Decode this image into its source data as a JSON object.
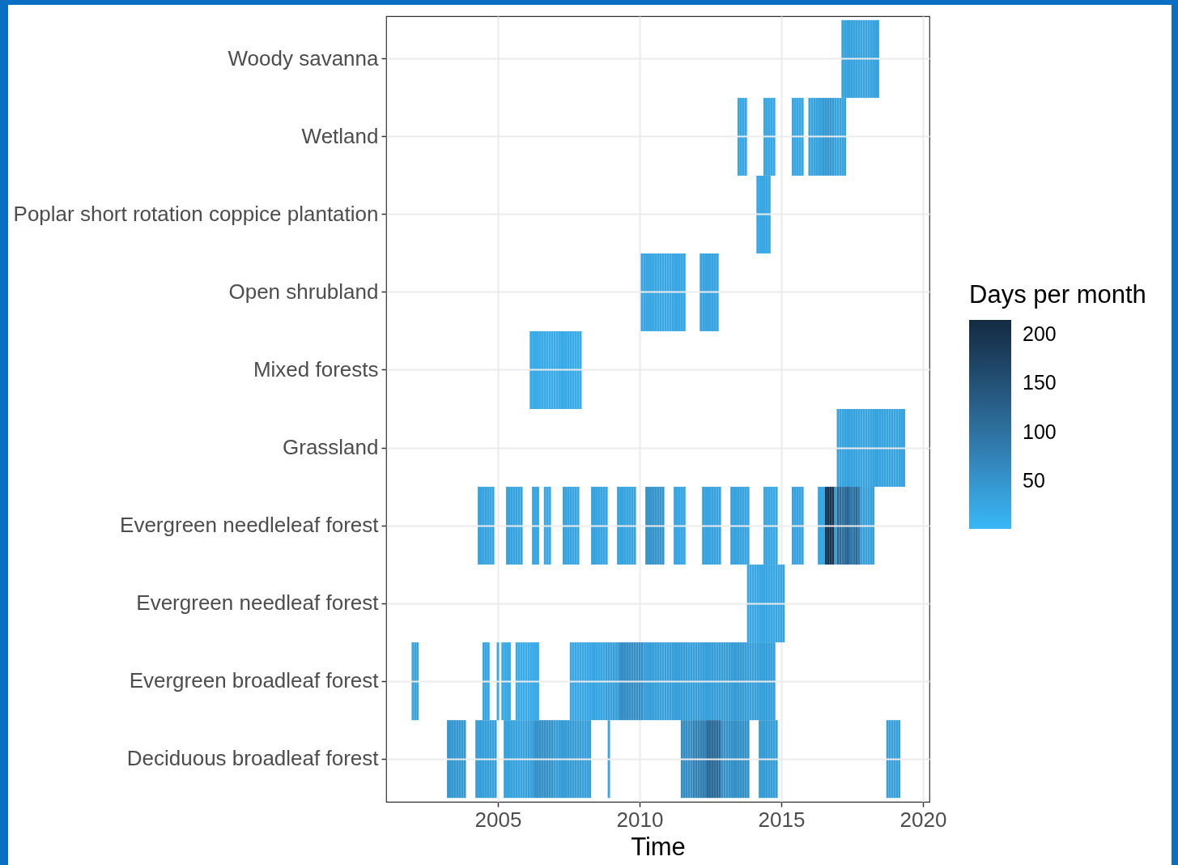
{
  "chart_data": {
    "type": "heatmap",
    "xlabel": "Time",
    "clabel": "Days per month",
    "x": [
      "2002-01",
      "2002-02",
      "2002-03",
      "2002-04",
      "2003-03",
      "2003-04",
      "2003-05",
      "2003-06",
      "2003-07",
      "2003-08",
      "2003-09",
      "2003-10",
      "2003-11",
      "2003-12",
      "2004-03",
      "2004-04",
      "2004-05",
      "2004-06",
      "2004-07",
      "2004-08",
      "2004-09",
      "2004-10",
      "2004-11",
      "2004-12",
      "2005-01",
      "2005-02",
      "2005-03",
      "2005-04",
      "2005-05",
      "2005-06",
      "2005-07",
      "2005-08",
      "2005-09",
      "2005-10",
      "2005-11",
      "2005-12",
      "2006-01",
      "2006-02",
      "2006-03",
      "2006-04",
      "2006-05",
      "2006-06",
      "2006-07",
      "2006-08",
      "2006-09",
      "2006-10",
      "2006-11",
      "2006-12",
      "2007-01",
      "2007-02",
      "2007-03",
      "2007-04",
      "2007-05",
      "2007-06",
      "2007-07",
      "2007-08",
      "2007-09",
      "2007-10",
      "2007-11",
      "2007-12",
      "2008-01",
      "2008-02",
      "2008-03",
      "2008-04",
      "2008-05",
      "2008-06",
      "2008-07",
      "2008-08",
      "2008-09",
      "2008-10",
      "2008-11",
      "2008-12",
      "2009-01",
      "2009-02",
      "2009-03",
      "2009-04",
      "2009-05",
      "2009-06",
      "2009-07",
      "2009-08",
      "2009-09",
      "2009-10",
      "2009-11",
      "2009-12",
      "2010-01",
      "2010-02",
      "2010-03",
      "2010-04",
      "2010-05",
      "2010-06",
      "2010-07",
      "2010-08",
      "2010-09",
      "2010-10",
      "2010-11",
      "2010-12",
      "2011-01",
      "2011-02",
      "2011-03",
      "2011-04",
      "2011-05",
      "2011-06",
      "2011-07",
      "2011-08",
      "2011-09",
      "2011-10",
      "2011-11",
      "2011-12",
      "2012-01",
      "2012-02",
      "2012-03",
      "2012-04",
      "2012-05",
      "2012-06",
      "2012-07",
      "2012-08",
      "2012-09",
      "2012-10",
      "2012-11",
      "2012-12",
      "2013-01",
      "2013-02",
      "2013-03",
      "2013-04",
      "2013-05",
      "2013-06",
      "2013-07",
      "2013-08",
      "2013-09",
      "2013-10",
      "2013-11",
      "2013-12",
      "2014-01",
      "2014-02",
      "2014-03",
      "2014-04",
      "2014-05",
      "2014-06",
      "2014-07",
      "2014-08",
      "2014-09",
      "2014-10",
      "2014-11",
      "2014-12",
      "2015-01",
      "2015-02",
      "2015-03",
      "2015-05",
      "2015-06",
      "2015-07",
      "2015-08",
      "2015-09",
      "2015-10",
      "2015-11",
      "2015-12",
      "2016-01",
      "2016-02",
      "2016-03",
      "2016-04",
      "2016-05",
      "2016-06",
      "2016-07",
      "2016-08",
      "2016-09",
      "2016-10",
      "2016-11",
      "2016-12",
      "2017-01",
      "2017-02",
      "2017-03",
      "2017-04",
      "2017-05",
      "2017-06",
      "2017-07",
      "2017-08",
      "2017-09",
      "2017-10",
      "2017-11",
      "2017-12",
      "2018-01",
      "2018-02",
      "2018-03",
      "2018-04",
      "2018-05",
      "2018-06",
      "2018-07",
      "2018-08",
      "2018-09",
      "2018-10",
      "2018-11",
      "2018-12",
      "2019-01",
      "2019-02",
      "2019-03",
      "2019-04",
      "2019-05",
      "2019-06"
    ],
    "y_categories": [
      "Woody savanna",
      "Wetland",
      "Poplar short rotation coppice plantation",
      "Open shrubland",
      "Mixed forests",
      "Grassland",
      "Evergreen needleleaf forest",
      "Evergreen needleaf forest",
      "Evergreen broadleaf forest",
      "Deciduous broadleaf forest"
    ],
    "cells": [
      [
        null,
        null,
        null,
        null,
        null,
        null,
        null,
        null,
        null,
        null,
        null,
        null,
        null,
        null,
        null,
        null,
        null,
        null,
        null,
        null,
        null,
        null,
        null,
        null,
        null,
        null,
        null,
        null,
        null,
        null,
        null,
        null,
        null,
        null,
        null,
        null,
        null,
        null,
        null,
        null,
        null,
        null,
        null,
        null,
        null,
        null,
        null,
        null,
        null,
        null,
        null,
        null,
        null,
        null,
        null,
        null,
        null,
        null,
        null,
        null,
        null,
        null,
        null,
        null,
        null,
        null,
        null,
        null,
        null,
        null,
        null,
        null,
        null,
        null,
        null,
        null,
        null,
        null,
        null,
        null,
        null,
        null,
        null,
        null,
        null,
        null,
        null,
        null,
        null,
        null,
        null,
        null,
        null,
        null,
        null,
        null,
        null,
        null,
        null,
        null,
        null,
        null,
        null,
        null,
        null,
        null,
        null,
        null,
        null,
        null,
        null,
        null,
        null,
        null,
        null,
        null,
        null,
        null,
        null,
        null,
        null,
        null,
        null,
        null,
        null,
        null,
        null,
        null,
        null,
        null,
        null,
        null,
        null,
        null,
        null,
        null,
        null,
        null,
        null,
        null,
        null,
        null,
        null,
        null,
        null,
        null,
        null,
        null,
        null,
        null,
        null,
        null,
        null,
        null,
        null,
        null,
        null,
        null,
        null,
        null,
        null,
        null,
        null,
        null,
        null,
        null,
        null,
        null,
        null,
        30,
        30,
        30,
        30,
        30,
        30,
        30,
        30,
        30,
        30,
        30,
        30,
        30,
        30,
        30,
        30,
        null,
        null,
        null,
        null,
        null,
        null,
        null,
        null,
        null,
        null,
        null,
        null
      ],
      [
        null,
        null,
        null,
        null,
        null,
        null,
        null,
        null,
        null,
        null,
        null,
        null,
        null,
        null,
        null,
        null,
        null,
        null,
        null,
        null,
        null,
        null,
        null,
        null,
        null,
        null,
        null,
        null,
        null,
        null,
        null,
        null,
        null,
        null,
        null,
        null,
        null,
        null,
        null,
        null,
        null,
        null,
        null,
        null,
        null,
        null,
        null,
        null,
        null,
        null,
        null,
        null,
        null,
        null,
        null,
        null,
        null,
        null,
        null,
        null,
        null,
        null,
        null,
        null,
        null,
        null,
        null,
        null,
        null,
        null,
        null,
        null,
        null,
        null,
        null,
        null,
        null,
        null,
        null,
        null,
        null,
        null,
        null,
        null,
        null,
        null,
        null,
        null,
        null,
        null,
        null,
        null,
        null,
        null,
        null,
        null,
        null,
        null,
        null,
        null,
        null,
        null,
        null,
        null,
        null,
        null,
        null,
        null,
        null,
        null,
        null,
        null,
        null,
        null,
        null,
        null,
        null,
        null,
        null,
        null,
        null,
        null,
        null,
        null,
        null,
        null,
        25,
        25,
        25,
        25,
        null,
        null,
        null,
        null,
        null,
        null,
        null,
        25,
        25,
        25,
        25,
        25,
        null,
        null,
        null,
        null,
        null,
        null,
        25,
        25,
        25,
        25,
        25,
        null,
        null,
        30,
        30,
        30,
        30,
        30,
        30,
        45,
        45,
        45,
        45,
        45,
        30,
        30,
        30,
        30,
        30,
        null,
        null,
        null,
        null,
        null,
        null,
        null,
        null,
        null,
        null,
        null,
        null,
        null,
        null,
        null,
        null,
        null,
        null,
        null,
        null,
        null,
        null,
        null,
        null,
        null,
        null
      ],
      [
        null,
        null,
        null,
        null,
        null,
        null,
        null,
        null,
        null,
        null,
        null,
        null,
        null,
        null,
        null,
        null,
        null,
        null,
        null,
        null,
        null,
        null,
        null,
        null,
        null,
        null,
        null,
        null,
        null,
        null,
        null,
        null,
        null,
        null,
        null,
        null,
        null,
        null,
        null,
        null,
        null,
        null,
        null,
        null,
        null,
        null,
        null,
        null,
        null,
        null,
        null,
        null,
        null,
        null,
        null,
        null,
        null,
        null,
        null,
        null,
        null,
        null,
        null,
        null,
        null,
        null,
        null,
        null,
        null,
        null,
        null,
        null,
        null,
        null,
        null,
        null,
        null,
        null,
        null,
        null,
        null,
        null,
        null,
        null,
        null,
        null,
        null,
        null,
        null,
        null,
        null,
        null,
        null,
        null,
        null,
        null,
        null,
        null,
        null,
        null,
        null,
        null,
        null,
        null,
        null,
        null,
        null,
        null,
        null,
        null,
        null,
        null,
        null,
        null,
        null,
        null,
        null,
        null,
        null,
        null,
        null,
        null,
        null,
        null,
        null,
        null,
        null,
        null,
        null,
        null,
        null,
        null,
        null,
        null,
        25,
        25,
        25,
        25,
        25,
        25,
        null,
        null,
        null,
        null,
        null,
        null,
        null,
        null,
        null,
        null,
        null,
        null,
        null,
        null,
        null,
        null,
        null,
        null,
        null,
        null,
        null,
        null,
        null,
        null,
        null,
        null,
        null,
        null,
        null,
        null,
        null,
        null,
        null,
        null,
        null,
        null,
        null,
        null,
        null,
        null,
        null,
        null,
        null,
        null,
        null,
        null,
        null,
        null,
        null,
        null,
        null,
        null,
        null,
        null,
        null,
        null,
        null
      ],
      [
        null,
        null,
        null,
        null,
        null,
        null,
        null,
        null,
        null,
        null,
        null,
        null,
        null,
        null,
        null,
        null,
        null,
        null,
        null,
        null,
        null,
        null,
        null,
        null,
        null,
        null,
        null,
        null,
        null,
        null,
        null,
        null,
        null,
        null,
        null,
        null,
        null,
        null,
        null,
        null,
        null,
        null,
        null,
        null,
        null,
        null,
        null,
        null,
        null,
        null,
        null,
        null,
        null,
        null,
        null,
        null,
        null,
        null,
        null,
        null,
        null,
        null,
        null,
        null,
        null,
        null,
        null,
        null,
        null,
        null,
        null,
        null,
        null,
        null,
        null,
        null,
        null,
        null,
        null,
        null,
        null,
        null,
        null,
        null,
        null,
        25,
        25,
        25,
        25,
        25,
        25,
        25,
        25,
        25,
        25,
        25,
        25,
        25,
        25,
        25,
        25,
        25,
        25,
        25,
        null,
        null,
        null,
        null,
        null,
        null,
        28,
        28,
        28,
        28,
        28,
        28,
        28,
        28,
        null,
        null,
        null,
        null,
        null,
        null,
        null,
        null,
        null,
        null,
        null,
        null,
        null,
        null,
        null,
        null,
        null,
        null,
        null,
        null,
        null,
        null,
        null,
        null,
        null,
        null,
        null,
        null,
        null,
        null,
        null,
        null,
        null,
        null,
        null,
        null,
        null,
        null,
        null,
        null,
        null,
        null,
        null,
        null,
        null,
        null,
        null,
        null,
        null,
        null,
        null,
        null,
        null,
        null,
        null,
        null,
        null,
        null,
        null,
        null,
        null,
        null,
        null,
        null,
        null,
        null,
        null,
        null,
        null,
        null,
        null,
        null,
        null,
        null,
        null,
        null,
        null,
        null,
        null
      ],
      [
        null,
        null,
        null,
        null,
        null,
        null,
        null,
        null,
        null,
        null,
        null,
        null,
        null,
        null,
        null,
        null,
        null,
        null,
        null,
        null,
        null,
        null,
        null,
        null,
        null,
        null,
        null,
        null,
        null,
        null,
        null,
        null,
        null,
        null,
        null,
        null,
        null,
        null,
        20,
        20,
        20,
        20,
        20,
        20,
        20,
        20,
        20,
        20,
        20,
        20,
        20,
        20,
        20,
        20,
        20,
        20,
        20,
        20,
        20,
        20,
        null,
        null,
        null,
        null,
        null,
        null,
        null,
        null,
        null,
        null,
        null,
        null,
        null,
        null,
        null,
        null,
        null,
        null,
        null,
        null,
        null,
        null,
        null,
        null,
        null,
        null,
        null,
        null,
        null,
        null,
        null,
        null,
        null,
        null,
        null,
        null,
        null,
        null,
        null,
        null,
        null,
        null,
        null,
        null,
        null,
        null,
        null,
        null,
        null,
        null,
        null,
        null,
        null,
        null,
        null,
        null,
        null,
        null,
        null,
        null,
        null,
        null,
        null,
        null,
        null,
        null,
        null,
        null,
        null,
        null,
        null,
        null,
        null,
        null,
        null,
        null,
        null,
        null,
        null,
        null,
        null,
        null,
        null,
        null,
        null,
        null,
        null,
        null,
        null,
        null,
        null,
        null,
        null,
        null,
        null,
        null,
        null,
        null,
        null,
        null,
        null,
        null,
        null,
        null,
        null,
        null,
        null,
        null,
        null,
        null,
        null,
        null,
        null,
        null,
        null,
        null,
        null,
        null,
        null,
        null,
        null,
        null,
        null,
        null,
        null,
        null,
        null,
        null,
        null,
        null,
        null,
        null,
        null,
        null,
        null,
        null,
        null
      ],
      [
        null,
        null,
        null,
        null,
        null,
        null,
        null,
        null,
        null,
        null,
        null,
        null,
        null,
        null,
        null,
        null,
        null,
        null,
        null,
        null,
        null,
        null,
        null,
        null,
        null,
        null,
        null,
        null,
        null,
        null,
        null,
        null,
        null,
        null,
        null,
        null,
        null,
        null,
        null,
        null,
        null,
        null,
        null,
        null,
        null,
        null,
        null,
        null,
        null,
        null,
        null,
        null,
        null,
        null,
        null,
        null,
        null,
        null,
        null,
        null,
        null,
        null,
        null,
        null,
        null,
        null,
        null,
        null,
        null,
        null,
        null,
        null,
        null,
        null,
        null,
        null,
        null,
        null,
        null,
        null,
        null,
        null,
        null,
        null,
        null,
        null,
        null,
        null,
        null,
        null,
        null,
        null,
        null,
        null,
        null,
        null,
        null,
        null,
        null,
        null,
        null,
        null,
        null,
        null,
        null,
        null,
        null,
        null,
        null,
        null,
        null,
        null,
        null,
        null,
        null,
        null,
        null,
        null,
        null,
        null,
        null,
        null,
        null,
        null,
        null,
        null,
        null,
        null,
        null,
        null,
        null,
        null,
        null,
        null,
        null,
        null,
        null,
        null,
        null,
        null,
        null,
        null,
        null,
        null,
        null,
        null,
        null,
        null,
        null,
        null,
        null,
        null,
        null,
        null,
        null,
        null,
        null,
        null,
        null,
        null,
        null,
        null,
        null,
        null,
        null,
        null,
        null,
        30,
        30,
        30,
        30,
        30,
        30,
        30,
        30,
        30,
        30,
        30,
        30,
        30,
        30,
        30,
        30,
        30,
        30,
        30,
        30,
        30,
        30,
        30,
        30,
        30,
        30,
        30,
        30,
        30,
        null
      ],
      [
        null,
        null,
        null,
        null,
        null,
        null,
        null,
        null,
        null,
        null,
        null,
        null,
        null,
        null,
        null,
        null,
        28,
        28,
        28,
        28,
        28,
        28,
        28,
        null,
        null,
        null,
        null,
        null,
        28,
        28,
        28,
        28,
        28,
        28,
        28,
        null,
        null,
        null,
        null,
        25,
        25,
        25,
        null,
        null,
        25,
        25,
        25,
        null,
        null,
        null,
        null,
        null,
        28,
        28,
        28,
        28,
        28,
        28,
        28,
        null,
        null,
        null,
        null,
        null,
        28,
        28,
        28,
        28,
        28,
        28,
        28,
        null,
        null,
        null,
        null,
        28,
        28,
        28,
        28,
        28,
        28,
        28,
        28,
        null,
        null,
        null,
        null,
        50,
        50,
        50,
        50,
        50,
        50,
        50,
        50,
        null,
        null,
        null,
        null,
        25,
        25,
        25,
        25,
        25,
        null,
        null,
        null,
        null,
        null,
        null,
        null,
        30,
        30,
        30,
        30,
        30,
        30,
        30,
        30,
        null,
        null,
        null,
        null,
        30,
        30,
        30,
        30,
        30,
        30,
        30,
        30,
        null,
        null,
        null,
        null,
        null,
        null,
        25,
        25,
        25,
        25,
        25,
        25,
        null,
        null,
        null,
        null,
        null,
        30,
        30,
        30,
        30,
        30,
        null,
        null,
        null,
        null,
        null,
        null,
        25,
        25,
        25,
        200,
        200,
        200,
        200,
        30,
        120,
        110,
        100,
        110,
        120,
        100,
        90,
        100,
        110,
        90,
        35,
        35,
        35,
        35,
        35,
        35,
        null,
        null,
        null,
        null,
        null,
        null,
        null,
        null,
        null,
        null,
        null,
        null,
        null,
        null
      ],
      [
        null,
        null,
        null,
        null,
        null,
        null,
        null,
        null,
        null,
        null,
        null,
        null,
        null,
        null,
        null,
        null,
        null,
        null,
        null,
        null,
        null,
        null,
        null,
        null,
        null,
        null,
        null,
        null,
        null,
        null,
        null,
        null,
        null,
        null,
        null,
        null,
        null,
        null,
        null,
        null,
        null,
        null,
        null,
        null,
        null,
        null,
        null,
        null,
        null,
        null,
        null,
        null,
        null,
        null,
        null,
        null,
        null,
        null,
        null,
        null,
        null,
        null,
        null,
        null,
        null,
        null,
        null,
        null,
        null,
        null,
        null,
        null,
        null,
        null,
        null,
        null,
        null,
        null,
        null,
        null,
        null,
        null,
        null,
        null,
        null,
        null,
        null,
        null,
        null,
        null,
        null,
        null,
        null,
        null,
        null,
        null,
        null,
        null,
        null,
        null,
        null,
        null,
        null,
        null,
        null,
        null,
        null,
        null,
        null,
        null,
        null,
        null,
        null,
        null,
        null,
        null,
        null,
        null,
        null,
        null,
        null,
        null,
        null,
        null,
        null,
        null,
        null,
        null,
        null,
        null,
        25,
        25,
        25,
        25,
        25,
        25,
        25,
        25,
        25,
        25,
        25,
        25,
        25,
        25,
        30,
        30,
        null,
        null,
        null,
        null,
        null,
        null,
        null,
        null,
        null,
        null,
        null,
        null,
        null,
        null,
        null,
        null,
        null,
        null,
        null,
        null,
        null,
        null,
        null,
        null,
        null,
        null,
        null,
        null,
        null,
        null,
        null,
        null,
        null,
        null,
        null,
        null,
        null,
        null,
        null,
        null,
        null,
        null,
        null,
        null,
        null,
        null,
        null,
        null,
        null,
        null,
        null
      ],
      [
        30,
        30,
        30,
        null,
        null,
        null,
        null,
        null,
        null,
        null,
        null,
        null,
        null,
        null,
        null,
        null,
        null,
        null,
        25,
        25,
        25,
        null,
        null,
        null,
        20,
        null,
        20,
        20,
        20,
        20,
        null,
        null,
        20,
        20,
        20,
        20,
        20,
        20,
        20,
        20,
        20,
        20,
        null,
        null,
        null,
        null,
        null,
        null,
        null,
        null,
        null,
        null,
        null,
        null,
        null,
        25,
        25,
        25,
        25,
        25,
        25,
        25,
        25,
        25,
        25,
        25,
        25,
        25,
        25,
        25,
        35,
        35,
        35,
        35,
        35,
        35,
        60,
        60,
        60,
        60,
        60,
        60,
        60,
        60,
        60,
        60,
        35,
        35,
        35,
        35,
        35,
        35,
        35,
        35,
        35,
        35,
        35,
        35,
        35,
        35,
        35,
        35,
        35,
        35,
        35,
        35,
        35,
        35,
        35,
        35,
        35,
        35,
        35,
        35,
        35,
        35,
        35,
        35,
        40,
        40,
        40,
        40,
        40,
        40,
        40,
        40,
        40,
        40,
        40,
        40,
        35,
        35,
        35,
        35,
        35,
        35,
        35,
        35,
        35,
        35,
        35,
        35,
        null,
        null,
        null,
        null,
        null,
        null,
        null,
        null,
        null,
        null,
        null,
        null,
        null,
        null,
        null,
        null,
        null,
        null,
        null,
        null,
        null,
        null,
        null,
        null,
        null,
        null,
        null,
        null,
        null,
        null,
        null,
        null,
        null,
        null,
        null,
        null,
        null,
        null,
        null,
        null,
        null,
        null,
        null,
        null,
        null,
        null,
        null,
        null,
        null,
        null,
        null,
        null,
        null
      ],
      [
        null,
        null,
        null,
        null,
        null,
        45,
        45,
        45,
        45,
        45,
        45,
        45,
        45,
        null,
        null,
        35,
        35,
        35,
        35,
        35,
        35,
        35,
        35,
        35,
        null,
        null,
        null,
        30,
        30,
        30,
        30,
        30,
        30,
        30,
        30,
        30,
        35,
        35,
        35,
        35,
        55,
        55,
        55,
        55,
        55,
        55,
        55,
        55,
        40,
        40,
        40,
        40,
        40,
        40,
        40,
        40,
        40,
        40,
        40,
        40,
        35,
        35,
        35,
        35,
        null,
        null,
        null,
        null,
        null,
        null,
        null,
        25,
        null,
        null,
        null,
        null,
        null,
        null,
        null,
        null,
        null,
        null,
        null,
        null,
        null,
        null,
        null,
        null,
        null,
        null,
        null,
        null,
        null,
        null,
        null,
        null,
        null,
        null,
        null,
        null,
        null,
        null,
        60,
        60,
        60,
        60,
        60,
        80,
        80,
        80,
        80,
        80,
        80,
        110,
        110,
        110,
        110,
        110,
        110,
        60,
        55,
        55,
        55,
        55,
        55,
        55,
        55,
        55,
        55,
        55,
        55,
        null,
        null,
        null,
        null,
        40,
        40,
        40,
        40,
        40,
        40,
        40,
        40,
        null,
        null,
        null,
        null,
        null,
        null,
        null,
        null,
        null,
        null,
        null,
        null,
        null,
        null,
        null,
        null,
        null,
        null,
        null,
        null,
        null,
        null,
        null,
        null,
        null,
        null,
        null,
        null,
        null,
        null,
        null,
        null,
        null,
        null,
        null,
        null,
        null,
        null,
        null,
        null,
        null,
        null,
        null,
        null,
        null,
        35,
        35,
        35,
        35,
        35,
        35,
        null,
        null,
        null
      ]
    ],
    "xlim": [
      "2001-01-22",
      "2020-03-25"
    ],
    "xticks": [
      "2005",
      "2010",
      "2015",
      "2020"
    ],
    "clim": [
      1,
      215
    ],
    "cticks": [
      50,
      100,
      150,
      200
    ],
    "grid": true
  }
}
